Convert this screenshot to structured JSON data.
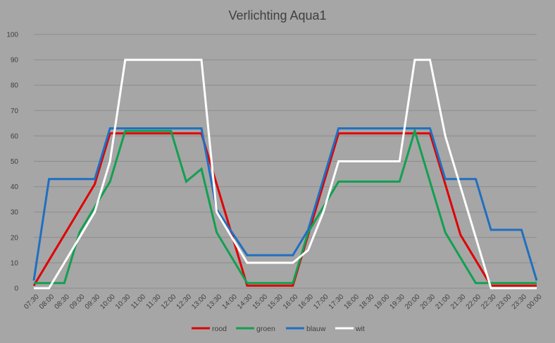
{
  "chart_data": {
    "type": "line",
    "title": "Verlichting Aqua1",
    "xlabel": "",
    "ylabel": "",
    "ylim": [
      0,
      100
    ],
    "yticks": [
      "0",
      "10",
      "20",
      "30",
      "40",
      "50",
      "60",
      "70",
      "80",
      "90",
      "100"
    ],
    "grid": true,
    "legend_position": "bottom",
    "x": [
      "07:30",
      "08:00",
      "08:30",
      "09:00",
      "09:30",
      "10:00",
      "10:30",
      "11:00",
      "11:30",
      "12:00",
      "12:30",
      "13:00",
      "13:30",
      "14:00",
      "14:30",
      "15:00",
      "15:30",
      "16:00",
      "16:30",
      "17:00",
      "17:30",
      "18:00",
      "18:30",
      "19:00",
      "19:30",
      "20:00",
      "20:30",
      "21:00",
      "21:30",
      "22:00",
      "22:30",
      "23:00",
      "23:30",
      "00:00"
    ],
    "series": [
      {
        "name": "rood",
        "color": "#e00000",
        "values": [
          1,
          11,
          21,
          31,
          41,
          61,
          61,
          61,
          61,
          61,
          61,
          61,
          41,
          21,
          1,
          1,
          1,
          1,
          21,
          41,
          61,
          61,
          61,
          61,
          61,
          61,
          61,
          41,
          21,
          11,
          1,
          1,
          1,
          1
        ]
      },
      {
        "name": "groen",
        "color": "#11a050",
        "values": [
          2,
          2,
          2,
          22,
          32,
          42,
          62,
          62,
          62,
          62,
          42,
          47,
          22,
          12,
          2,
          2,
          2,
          2,
          22,
          32,
          42,
          42,
          42,
          42,
          42,
          62,
          42,
          22,
          12,
          2,
          2,
          2,
          2,
          2
        ]
      },
      {
        "name": "blauw",
        "color": "#1f6fc1",
        "values": [
          3,
          43,
          43,
          43,
          43,
          63,
          63,
          63,
          63,
          63,
          63,
          63,
          31,
          22,
          13,
          13,
          13,
          13,
          23,
          43,
          63,
          63,
          63,
          63,
          63,
          63,
          63,
          43,
          43,
          43,
          23,
          23,
          23,
          3
        ]
      },
      {
        "name": "wit",
        "color": "#ffffff",
        "values": [
          0,
          0,
          10,
          20,
          30,
          50,
          90,
          90,
          90,
          90,
          90,
          90,
          30,
          20,
          10,
          10,
          10,
          10,
          15,
          30,
          50,
          50,
          50,
          50,
          50,
          90,
          90,
          60,
          40,
          20,
          0,
          0,
          0,
          0
        ]
      }
    ]
  }
}
